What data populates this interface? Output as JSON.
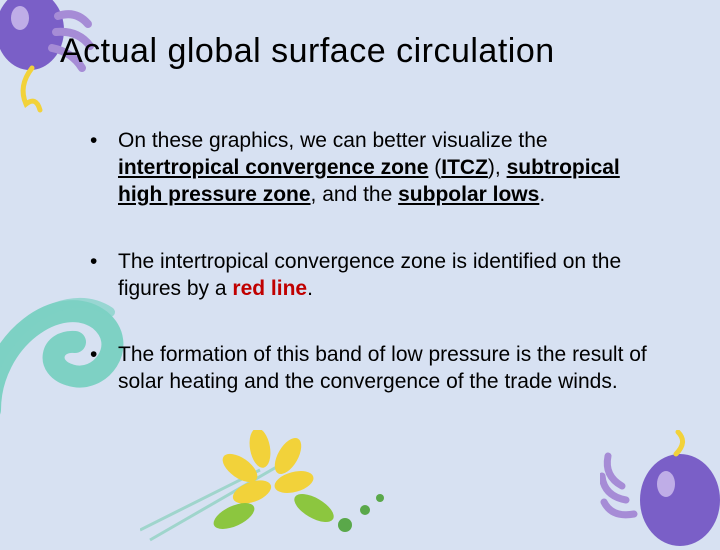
{
  "colors": {
    "background": "#d7e1f2",
    "text": "#000000",
    "red": "#c00000",
    "balloon_purple": "#7a5fc7",
    "balloon_purple_light": "#a68cd6",
    "ribbon_yellow": "#f2d23a",
    "swirl_teal": "#7ed1c4",
    "flower_yellow": "#f2d23a",
    "flower_green": "#8cc63f",
    "dot_green": "#5aa84a",
    "line_teal": "#9fd5cc"
  },
  "typography": {
    "family": "Verdana, Geneva, sans-serif",
    "title_fontsize": 34,
    "body_fontsize": 21,
    "line_height": 1.28
  },
  "title": "Actual global surface circulation",
  "bullets": [
    {
      "runs": [
        {
          "t": "On these graphics, we can better visualize the "
        },
        {
          "t": "intertropical convergence zone",
          "bold": true,
          "underline": true
        },
        {
          "t": " ("
        },
        {
          "t": "ITCZ",
          "bold": true,
          "underline": true
        },
        {
          "t": "), "
        },
        {
          "t": "subtropical high pressure zone",
          "bold": true,
          "underline": true
        },
        {
          "t": ", and the "
        },
        {
          "t": "subpolar lows",
          "bold": true,
          "underline": true
        },
        {
          "t": "."
        }
      ]
    },
    {
      "runs": [
        {
          "t": "The intertropical convergence zone is identified on the figures by a "
        },
        {
          "t": "red line",
          "bold": true,
          "color": "red"
        },
        {
          "t": "."
        }
      ]
    },
    {
      "runs": [
        {
          "t": "The formation of this band of low pressure is the result of solar heating and the convergence of the trade winds."
        }
      ]
    }
  ]
}
